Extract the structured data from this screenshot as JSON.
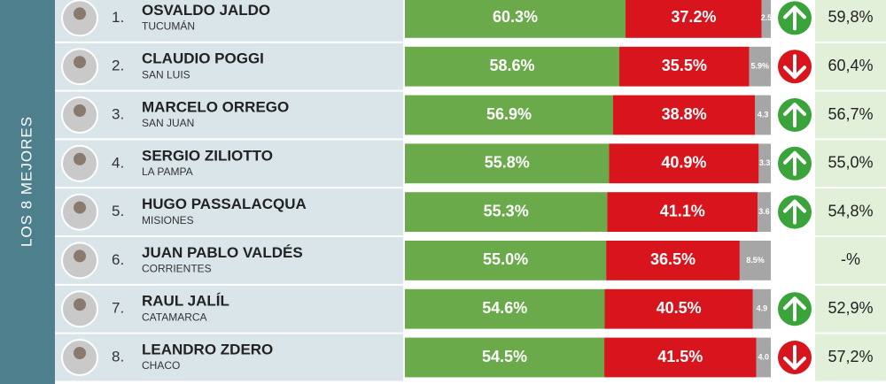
{
  "side_label": "LOS 8 MEJORES",
  "segment_colors": [
    "#6aaa4a",
    "#d8141c",
    "#a6a6a6"
  ],
  "rows": [
    {
      "rank": "1.",
      "name": "OSVALDO JALDO",
      "province": "TUCUMÁN",
      "values": [
        60.3,
        37.2,
        2.5
      ],
      "value_labels": [
        "60.3%",
        "37.2%",
        "2.5"
      ],
      "trend": "up",
      "previous": "59,8%"
    },
    {
      "rank": "2.",
      "name": "CLAUDIO POGGI",
      "province": "SAN LUIS",
      "values": [
        58.6,
        35.5,
        5.9
      ],
      "value_labels": [
        "58.6%",
        "35.5%",
        "5.9%"
      ],
      "trend": "down",
      "previous": "60,4%"
    },
    {
      "rank": "3.",
      "name": "MARCELO ORREGO",
      "province": "SAN JUAN",
      "values": [
        56.9,
        38.8,
        4.3
      ],
      "value_labels": [
        "56.9%",
        "38.8%",
        "4.3"
      ],
      "trend": "up",
      "previous": "56,7%"
    },
    {
      "rank": "4.",
      "name": "SERGIO ZILIOTTO",
      "province": "LA PAMPA",
      "values": [
        55.8,
        40.9,
        3.3
      ],
      "value_labels": [
        "55.8%",
        "40.9%",
        "3.3"
      ],
      "trend": "up",
      "previous": "55,0%"
    },
    {
      "rank": "5.",
      "name": "HUGO PASSALACQUA",
      "province": "MISIONES",
      "values": [
        55.3,
        41.1,
        3.6
      ],
      "value_labels": [
        "55.3%",
        "41.1%",
        "3.6"
      ],
      "trend": "up",
      "previous": "54,8%"
    },
    {
      "rank": "6.",
      "name": "JUAN PABLO VALDÉS",
      "province": "CORRIENTES",
      "values": [
        55.0,
        36.5,
        8.5
      ],
      "value_labels": [
        "55.0%",
        "36.5%",
        "8.5%"
      ],
      "trend": null,
      "previous": "-%"
    },
    {
      "rank": "7.",
      "name": "RAUL JALÍL",
      "province": "CATAMARCA",
      "values": [
        54.6,
        40.5,
        4.9
      ],
      "value_labels": [
        "54.6%",
        "40.5%",
        "4.9"
      ],
      "trend": "up",
      "previous": "52,9%"
    },
    {
      "rank": "8.",
      "name": "LEANDRO ZDERO",
      "province": "CHACO",
      "values": [
        54.5,
        41.5,
        4.0
      ],
      "value_labels": [
        "54.5%",
        "41.5%",
        "4.0"
      ],
      "trend": "down",
      "previous": "57,2%"
    }
  ]
}
